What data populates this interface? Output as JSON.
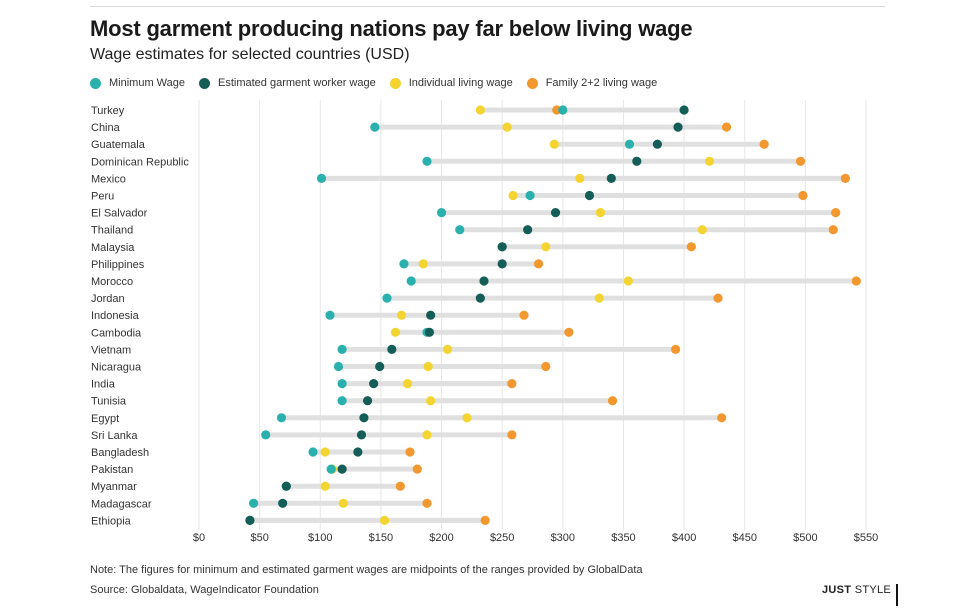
{
  "header": {
    "title": "Most garment producing nations pay far below living wage",
    "subtitle": "Wage estimates for selected countries (USD)"
  },
  "legend": [
    {
      "label": "Minimum Wage",
      "color": "#2ab0ad"
    },
    {
      "label": "Estimated garment worker wage",
      "color": "#155e57"
    },
    {
      "label": "Individual living wage",
      "color": "#f4d431"
    },
    {
      "label": "Family 2+2 living wage",
      "color": "#f3972f"
    }
  ],
  "footer": {
    "note": "Note: The figures for minimum and estimated garment wages are midpoints of the ranges provided by GlobalData",
    "source": "Source: Globaldata, WageIndicator Foundation",
    "brand_bold": "JUST",
    "brand_rest": "STYLE"
  },
  "chart_data": {
    "type": "dot-range",
    "title": "Most garment producing nations pay far below living wage",
    "subtitle": "Wage estimates for selected countries (USD)",
    "xlim": [
      0,
      550
    ],
    "x_ticks": [
      0,
      50,
      100,
      150,
      200,
      250,
      300,
      350,
      400,
      450,
      500,
      550
    ],
    "x_tick_labels": [
      "$0",
      "$50",
      "$100",
      "$150",
      "$200",
      "$250",
      "$300",
      "$350",
      "$400",
      "$450",
      "$500",
      "$550"
    ],
    "grid": true,
    "legend_position": "top",
    "series_names": [
      "Minimum Wage",
      "Estimated garment worker wage",
      "Individual living wage",
      "Family 2+2 living wage"
    ],
    "series_keys": [
      "min",
      "garment",
      "individual",
      "family"
    ],
    "series_colors": [
      "#2ab0ad",
      "#155e57",
      "#f4d431",
      "#f3972f"
    ],
    "rows": [
      {
        "country": "Turkey",
        "min": 300,
        "garment": 400,
        "individual": 232,
        "family": 295
      },
      {
        "country": "China",
        "min": 145,
        "garment": 395,
        "individual": 254,
        "family": 435
      },
      {
        "country": "Guatemala",
        "min": 355,
        "garment": 378,
        "individual": 293,
        "family": 466
      },
      {
        "country": "Dominican Republic",
        "min": 188,
        "garment": 361,
        "individual": 421,
        "family": 496
      },
      {
        "country": "Mexico",
        "min": 101,
        "garment": 340,
        "individual": 314,
        "family": 533
      },
      {
        "country": "Peru",
        "min": 273,
        "garment": 322,
        "individual": 259,
        "family": 498
      },
      {
        "country": "El Salvador",
        "min": 200,
        "garment": 294,
        "individual": 331,
        "family": 525
      },
      {
        "country": "Thailand",
        "min": 215,
        "garment": 271,
        "individual": 415,
        "family": 523
      },
      {
        "country": "Malaysia",
        "min": 250,
        "garment": 250,
        "individual": 286,
        "family": 406
      },
      {
        "country": "Philippines",
        "min": 169,
        "garment": 250,
        "individual": 185,
        "family": 280
      },
      {
        "country": "Morocco",
        "min": 175,
        "garment": 235,
        "individual": 354,
        "family": 542
      },
      {
        "country": "Jordan",
        "min": 155,
        "garment": 232,
        "individual": 330,
        "family": 428
      },
      {
        "country": "Indonesia",
        "min": 108,
        "garment": 191,
        "individual": 167,
        "family": 268
      },
      {
        "country": "Cambodia",
        "min": 188,
        "garment": 190,
        "individual": 162,
        "family": 305
      },
      {
        "country": "Vietnam",
        "min": 118,
        "garment": 159,
        "individual": 205,
        "family": 393
      },
      {
        "country": "Nicaragua",
        "min": 115,
        "garment": 149,
        "individual": 189,
        "family": 286
      },
      {
        "country": "India",
        "min": 118,
        "garment": 144,
        "individual": 172,
        "family": 258
      },
      {
        "country": "Tunisia",
        "min": 118,
        "garment": 139,
        "individual": 191,
        "family": 341
      },
      {
        "country": "Egypt",
        "min": 68,
        "garment": 136,
        "individual": 221,
        "family": 431
      },
      {
        "country": "Sri Lanka",
        "min": 55,
        "garment": 134,
        "individual": 188,
        "family": 258
      },
      {
        "country": "Bangladesh",
        "min": 94,
        "garment": 131,
        "individual": 104,
        "family": 174
      },
      {
        "country": "Pakistan",
        "min": 109,
        "garment": 118,
        "individual": 110,
        "family": 180
      },
      {
        "country": "Myanmar",
        "min": 72,
        "garment": 72,
        "individual": 104,
        "family": 166
      },
      {
        "country": "Madagascar",
        "min": 45,
        "garment": 69,
        "individual": 119,
        "family": 188
      },
      {
        "country": "Ethiopia",
        "min": 42,
        "garment": 42,
        "individual": 153,
        "family": 236
      }
    ]
  }
}
